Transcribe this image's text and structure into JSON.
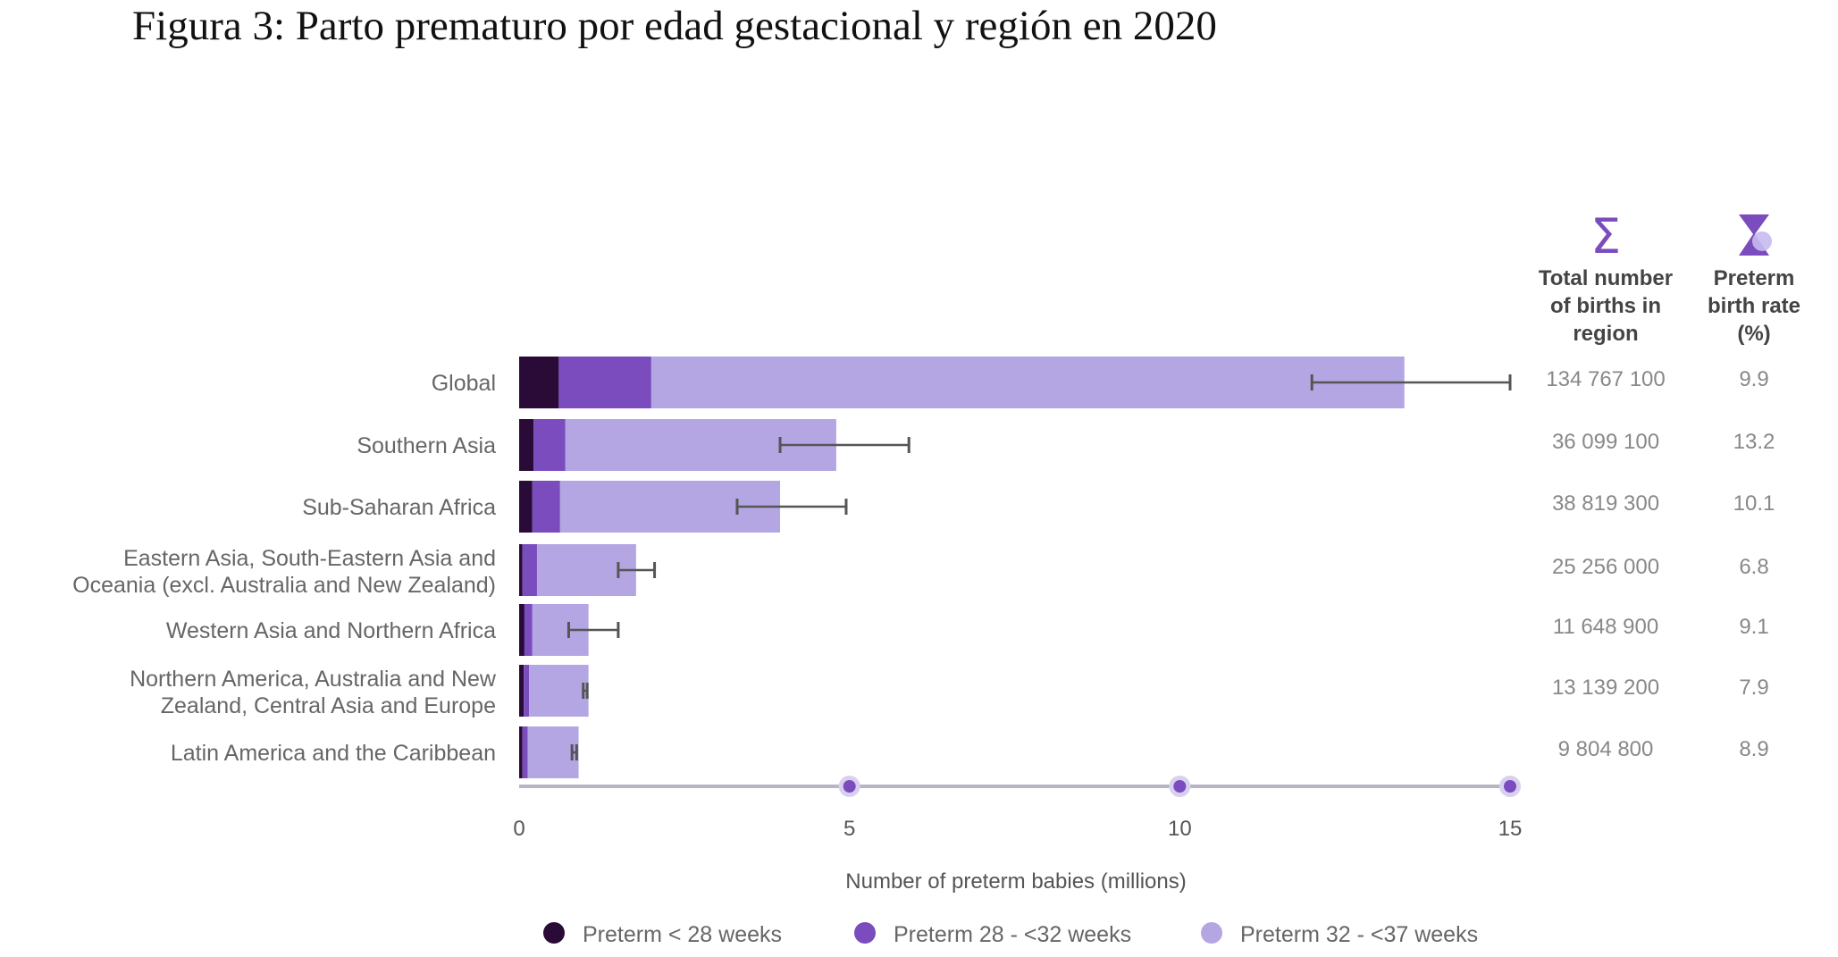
{
  "figure_title": "Figura 3: Parto prematuro por edad gestacional y región en 2020",
  "table_headers": {
    "births": [
      "Total number",
      "of births in",
      "region"
    ],
    "rate": [
      "Preterm",
      "birth rate",
      "(%)"
    ]
  },
  "icons": {
    "births": "sigma-icon",
    "rate": "hourglass-icon"
  },
  "colors": {
    "lt28": "#2a0a36",
    "w28_32": "#7a4cbd",
    "w32_37": "#b4a6e3",
    "axis": "#b8b4c4",
    "axis_dot": "#7a4cbd",
    "errorbar": "#555555"
  },
  "chart_data": {
    "type": "bar",
    "orientation": "horizontal",
    "stacked": true,
    "title": "",
    "xlabel": "Number of preterm babies (millions)",
    "ylabel": "",
    "xlim": [
      0,
      15
    ],
    "xticks": [
      "0",
      "5",
      "10",
      "15"
    ],
    "categories": [
      [
        "Global"
      ],
      [
        "Southern Asia"
      ],
      [
        "Sub-Saharan Africa"
      ],
      [
        "Eastern Asia, South-Eastern Asia and",
        "Oceania (excl. Australia and New Zealand)"
      ],
      [
        "Western Asia and Northern Africa"
      ],
      [
        "Northern America, Australia and New",
        "Zealand, Central Asia and Europe"
      ],
      [
        "Latin America and the Caribbean"
      ]
    ],
    "series": [
      {
        "name": "Preterm < 28 weeks",
        "color_key": "lt28",
        "values": [
          0.6,
          0.22,
          0.2,
          0.05,
          0.08,
          0.07,
          0.05
        ]
      },
      {
        "name": "Preterm 28 - <32 weeks",
        "color_key": "w28_32",
        "values": [
          1.4,
          0.48,
          0.42,
          0.22,
          0.12,
          0.08,
          0.08
        ]
      },
      {
        "name": "Preterm 32 - <37 weeks",
        "color_key": "w32_37",
        "values": [
          11.4,
          4.1,
          3.33,
          1.5,
          0.85,
          0.9,
          0.77
        ]
      }
    ],
    "error_bars": [
      [
        12.0,
        15.0
      ],
      [
        3.95,
        5.9
      ],
      [
        3.3,
        4.95
      ],
      [
        1.5,
        2.05
      ],
      [
        0.75,
        1.5
      ],
      [
        0.97,
        1.03
      ],
      [
        0.8,
        0.87
      ]
    ],
    "total_births": [
      "134 767 100",
      "36 099 100",
      "38 819 300",
      "25 256 000",
      "11 648 900",
      "13 139 200",
      "9 804 800"
    ],
    "preterm_rate": [
      "9.9",
      "13.2",
      "10.1",
      "6.8",
      "9.1",
      "7.9",
      "8.9"
    ],
    "legend_position": "bottom",
    "grid": false
  }
}
